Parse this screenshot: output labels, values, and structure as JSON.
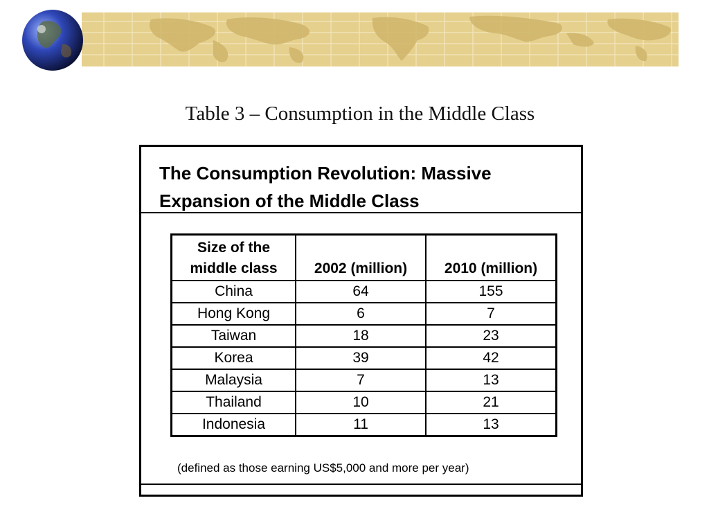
{
  "slide_title": "Table 3 – Consumption in the Middle Class",
  "box_title": "The Consumption Revolution: Massive Expansion of the Middle Class",
  "table": {
    "headers": [
      "Size of the middle class",
      "2002 (million)",
      "2010 (million)"
    ],
    "rows": [
      [
        "China",
        "64",
        "155"
      ],
      [
        "Hong Kong",
        "6",
        "7"
      ],
      [
        "Taiwan",
        "18",
        "23"
      ],
      [
        "Korea",
        "39",
        "42"
      ],
      [
        "Malaysia",
        "7",
        "13"
      ],
      [
        "Thailand",
        "10",
        "21"
      ],
      [
        "Indonesia",
        "11",
        "13"
      ]
    ]
  },
  "footnote": "(defined as those earning US$5,000 and more per year)",
  "colors": {
    "banner": "#e6d08e",
    "map": "#cfb56a",
    "grid": "#f3e6bd"
  },
  "icons": [
    "globe-icon",
    "world-map-banner"
  ]
}
